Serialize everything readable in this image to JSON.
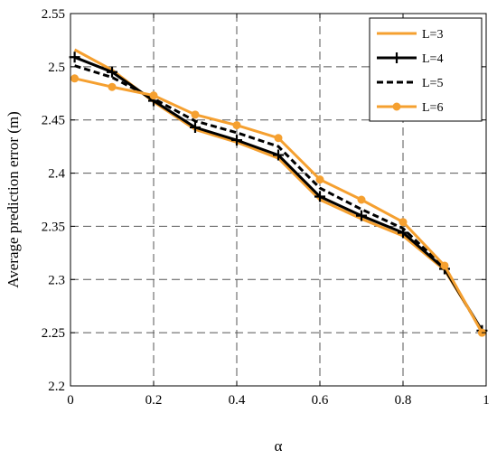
{
  "chart_data": {
    "type": "line",
    "title": "",
    "xlabel": "α",
    "ylabel": "Average prediction error (m)",
    "xlim": [
      0,
      1
    ],
    "ylim": [
      2.2,
      2.55
    ],
    "xticks": [
      0,
      0.2,
      0.4,
      0.6,
      0.8,
      1
    ],
    "xtick_labels": [
      "0",
      "0.2",
      "0.4",
      "0.6",
      "0.8",
      "1"
    ],
    "yticks": [
      2.2,
      2.25,
      2.3,
      2.35,
      2.4,
      2.45,
      2.5,
      2.55
    ],
    "ytick_labels": [
      "2.2",
      "2.25",
      "2.3",
      "2.35",
      "2.4",
      "2.45",
      "2.5",
      "2.55"
    ],
    "grid": true,
    "legend_position": "top-right",
    "series": [
      {
        "name": "L=3",
        "color": "#F5A030",
        "line_style": "solid",
        "marker": "none",
        "x": [
          0.01,
          0.1,
          0.2,
          0.3,
          0.4,
          0.5,
          0.6,
          0.7,
          0.8,
          0.9,
          0.99
        ],
        "y": [
          2.516,
          2.497,
          2.467,
          2.441,
          2.429,
          2.414,
          2.375,
          2.357,
          2.341,
          2.309,
          2.252
        ]
      },
      {
        "name": "L=4",
        "color": "#000000",
        "line_style": "solid",
        "marker": "plus",
        "x": [
          0.01,
          0.1,
          0.2,
          0.3,
          0.4,
          0.5,
          0.6,
          0.7,
          0.8,
          0.9,
          0.99
        ],
        "y": [
          2.509,
          2.495,
          2.468,
          2.443,
          2.431,
          2.417,
          2.378,
          2.36,
          2.344,
          2.31,
          2.252
        ]
      },
      {
        "name": "L=5",
        "color": "#000000",
        "line_style": "dashed",
        "marker": "none",
        "x": [
          0.01,
          0.1,
          0.2,
          0.3,
          0.4,
          0.5,
          0.6,
          0.7,
          0.8,
          0.9,
          0.99
        ],
        "y": [
          2.501,
          2.49,
          2.47,
          2.449,
          2.438,
          2.425,
          2.386,
          2.366,
          2.348,
          2.311,
          2.251
        ]
      },
      {
        "name": "L=6",
        "color": "#F5A030",
        "line_style": "solid",
        "marker": "circle",
        "x": [
          0.01,
          0.1,
          0.2,
          0.3,
          0.4,
          0.5,
          0.6,
          0.7,
          0.8,
          0.9,
          0.99
        ],
        "y": [
          2.489,
          2.481,
          2.473,
          2.455,
          2.445,
          2.433,
          2.394,
          2.375,
          2.354,
          2.313,
          2.25
        ]
      }
    ]
  }
}
